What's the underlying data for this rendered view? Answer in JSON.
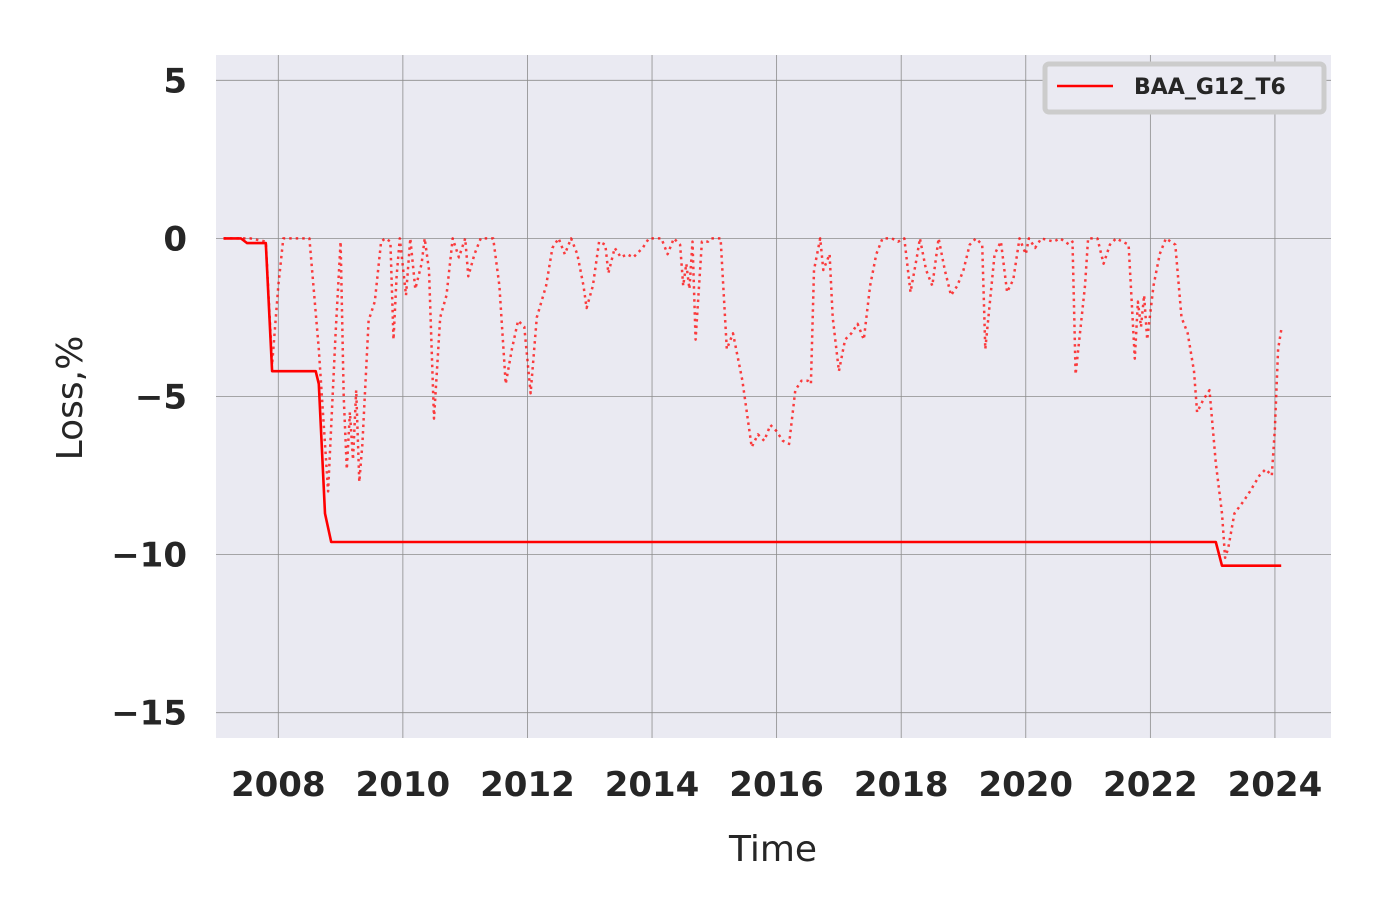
{
  "chart_data": {
    "type": "line",
    "xlabel": "Time",
    "ylabel": "Loss,%",
    "xlim": [
      2007.0,
      2024.9
    ],
    "ylim": [
      -15.8,
      5.8
    ],
    "x_ticks": [
      2008,
      2010,
      2012,
      2014,
      2016,
      2018,
      2020,
      2022,
      2024
    ],
    "y_ticks": [
      5,
      0,
      -5,
      -10,
      -15
    ],
    "y_tick_labels": [
      "5",
      "0",
      "−5",
      "−10",
      "−15"
    ],
    "grid": true,
    "legend_position": "upper-right",
    "colors": {
      "background": "#eaeaf2",
      "grid": "#8c8c8c",
      "series": "#ff0000",
      "legend_border": "#cccccc"
    },
    "series": [
      {
        "name": "BAA_G12_T6",
        "style": "solid",
        "in_legend": true,
        "points": [
          [
            2007.12,
            0.0
          ],
          [
            2007.4,
            0.0
          ],
          [
            2007.5,
            -0.15
          ],
          [
            2007.8,
            -0.15
          ],
          [
            2007.9,
            -4.2
          ],
          [
            2008.6,
            -4.2
          ],
          [
            2008.65,
            -4.6
          ],
          [
            2008.75,
            -8.7
          ],
          [
            2008.85,
            -9.6
          ],
          [
            2023.05,
            -9.6
          ],
          [
            2023.15,
            -10.35
          ],
          [
            2024.1,
            -10.35
          ]
        ]
      },
      {
        "style": "dotted",
        "in_legend": false,
        "points": [
          [
            2007.12,
            0.0
          ],
          [
            2007.4,
            0.0
          ],
          [
            2007.55,
            0.0
          ],
          [
            2007.8,
            -0.1
          ],
          [
            2007.9,
            -4.0
          ],
          [
            2008.0,
            -1.5
          ],
          [
            2008.08,
            0.0
          ],
          [
            2008.5,
            0.0
          ],
          [
            2008.65,
            -3.5
          ],
          [
            2008.8,
            -8.0
          ],
          [
            2008.92,
            -3.0
          ],
          [
            2009.0,
            -0.1
          ],
          [
            2009.05,
            -5.0
          ],
          [
            2009.1,
            -7.3
          ],
          [
            2009.15,
            -5.5
          ],
          [
            2009.2,
            -7.0
          ],
          [
            2009.25,
            -4.8
          ],
          [
            2009.3,
            -7.7
          ],
          [
            2009.35,
            -6.5
          ],
          [
            2009.45,
            -2.6
          ],
          [
            2009.55,
            -2.0
          ],
          [
            2009.65,
            -0.1
          ],
          [
            2009.72,
            0.0
          ],
          [
            2009.8,
            -0.1
          ],
          [
            2009.85,
            -3.2
          ],
          [
            2009.9,
            -1.2
          ],
          [
            2009.95,
            0.0
          ],
          [
            2010.05,
            -1.8
          ],
          [
            2010.12,
            0.0
          ],
          [
            2010.2,
            -1.6
          ],
          [
            2010.3,
            -0.8
          ],
          [
            2010.35,
            0.0
          ],
          [
            2010.42,
            -1.0
          ],
          [
            2010.5,
            -5.7
          ],
          [
            2010.6,
            -2.5
          ],
          [
            2010.7,
            -1.8
          ],
          [
            2010.8,
            0.0
          ],
          [
            2010.9,
            -0.6
          ],
          [
            2011.0,
            0.0
          ],
          [
            2011.05,
            -1.2
          ],
          [
            2011.15,
            -0.5
          ],
          [
            2011.25,
            0.0
          ],
          [
            2011.45,
            0.0
          ],
          [
            2011.55,
            -1.5
          ],
          [
            2011.65,
            -4.6
          ],
          [
            2011.75,
            -3.5
          ],
          [
            2011.85,
            -2.6
          ],
          [
            2011.95,
            -2.8
          ],
          [
            2012.05,
            -4.9
          ],
          [
            2012.15,
            -2.5
          ],
          [
            2012.3,
            -1.5
          ],
          [
            2012.4,
            -0.3
          ],
          [
            2012.5,
            0.0
          ],
          [
            2012.6,
            -0.5
          ],
          [
            2012.7,
            0.0
          ],
          [
            2012.8,
            -0.5
          ],
          [
            2012.9,
            -1.5
          ],
          [
            2012.95,
            -2.2
          ],
          [
            2013.05,
            -1.5
          ],
          [
            2013.15,
            -0.1
          ],
          [
            2013.25,
            -0.2
          ],
          [
            2013.3,
            -1.1
          ],
          [
            2013.4,
            -0.3
          ],
          [
            2013.5,
            -0.6
          ],
          [
            2013.6,
            -0.5
          ],
          [
            2013.7,
            -0.6
          ],
          [
            2013.85,
            -0.3
          ],
          [
            2013.95,
            0.0
          ],
          [
            2014.15,
            0.0
          ],
          [
            2014.25,
            -0.5
          ],
          [
            2014.35,
            0.0
          ],
          [
            2014.45,
            -0.2
          ],
          [
            2014.5,
            -1.5
          ],
          [
            2014.55,
            -0.8
          ],
          [
            2014.6,
            -1.6
          ],
          [
            2014.65,
            -0.1
          ],
          [
            2014.7,
            -3.2
          ],
          [
            2014.8,
            -0.1
          ],
          [
            2014.9,
            -0.1
          ],
          [
            2014.95,
            0.0
          ],
          [
            2015.1,
            0.0
          ],
          [
            2015.2,
            -3.5
          ],
          [
            2015.3,
            -3.0
          ],
          [
            2015.45,
            -4.5
          ],
          [
            2015.6,
            -6.6
          ],
          [
            2015.7,
            -6.2
          ],
          [
            2015.8,
            -6.4
          ],
          [
            2015.9,
            -5.9
          ],
          [
            2016.0,
            -6.1
          ],
          [
            2016.1,
            -6.4
          ],
          [
            2016.2,
            -6.5
          ],
          [
            2016.3,
            -4.8
          ],
          [
            2016.4,
            -4.5
          ],
          [
            2016.5,
            -4.5
          ],
          [
            2016.55,
            -4.6
          ],
          [
            2016.6,
            -1.0
          ],
          [
            2016.7,
            0.0
          ],
          [
            2016.75,
            -1.0
          ],
          [
            2016.85,
            -0.5
          ],
          [
            2016.9,
            -2.5
          ],
          [
            2017.0,
            -4.2
          ],
          [
            2017.1,
            -3.2
          ],
          [
            2017.2,
            -3.0
          ],
          [
            2017.3,
            -2.7
          ],
          [
            2017.4,
            -3.2
          ],
          [
            2017.5,
            -1.5
          ],
          [
            2017.6,
            -0.5
          ],
          [
            2017.7,
            0.0
          ],
          [
            2017.85,
            0.0
          ],
          [
            2017.95,
            -0.1
          ],
          [
            2018.05,
            0.0
          ],
          [
            2018.15,
            -1.7
          ],
          [
            2018.25,
            -0.6
          ],
          [
            2018.3,
            0.0
          ],
          [
            2018.4,
            -1.0
          ],
          [
            2018.5,
            -1.5
          ],
          [
            2018.6,
            0.0
          ],
          [
            2018.7,
            -1.0
          ],
          [
            2018.8,
            -1.8
          ],
          [
            2018.9,
            -1.5
          ],
          [
            2019.0,
            -1.0
          ],
          [
            2019.1,
            -0.2
          ],
          [
            2019.2,
            0.0
          ],
          [
            2019.3,
            -0.2
          ],
          [
            2019.35,
            -3.5
          ],
          [
            2019.45,
            -1.5
          ],
          [
            2019.5,
            -0.5
          ],
          [
            2019.6,
            -0.1
          ],
          [
            2019.7,
            -1.7
          ],
          [
            2019.8,
            -1.3
          ],
          [
            2019.9,
            0.0
          ],
          [
            2020.0,
            -0.5
          ],
          [
            2020.05,
            0.0
          ],
          [
            2020.15,
            -0.3
          ],
          [
            2020.25,
            0.0
          ],
          [
            2020.45,
            -0.1
          ],
          [
            2020.55,
            0.0
          ],
          [
            2020.7,
            -0.2
          ],
          [
            2020.75,
            -0.1
          ],
          [
            2020.8,
            -4.3
          ],
          [
            2020.95,
            -1.5
          ],
          [
            2021.0,
            0.0
          ],
          [
            2021.15,
            0.0
          ],
          [
            2021.25,
            -0.8
          ],
          [
            2021.35,
            -0.2
          ],
          [
            2021.45,
            0.0
          ],
          [
            2021.55,
            -0.1
          ],
          [
            2021.65,
            -0.2
          ],
          [
            2021.75,
            -3.8
          ],
          [
            2021.8,
            -2.0
          ],
          [
            2021.85,
            -2.8
          ],
          [
            2021.9,
            -1.8
          ],
          [
            2021.95,
            -3.2
          ],
          [
            2022.05,
            -1.5
          ],
          [
            2022.15,
            -0.5
          ],
          [
            2022.25,
            0.0
          ],
          [
            2022.4,
            -0.2
          ],
          [
            2022.5,
            -2.5
          ],
          [
            2022.6,
            -3.0
          ],
          [
            2022.7,
            -4.2
          ],
          [
            2022.75,
            -5.5
          ],
          [
            2022.85,
            -5.1
          ],
          [
            2022.95,
            -4.8
          ],
          [
            2023.05,
            -7.1
          ],
          [
            2023.15,
            -8.7
          ],
          [
            2023.2,
            -10.1
          ],
          [
            2023.25,
            -9.8
          ],
          [
            2023.35,
            -8.7
          ],
          [
            2023.5,
            -8.3
          ],
          [
            2023.6,
            -8.0
          ],
          [
            2023.75,
            -7.5
          ],
          [
            2023.85,
            -7.3
          ],
          [
            2023.95,
            -7.5
          ],
          [
            2024.0,
            -6.0
          ],
          [
            2024.05,
            -3.5
          ],
          [
            2024.1,
            -2.9
          ]
        ]
      }
    ]
  }
}
